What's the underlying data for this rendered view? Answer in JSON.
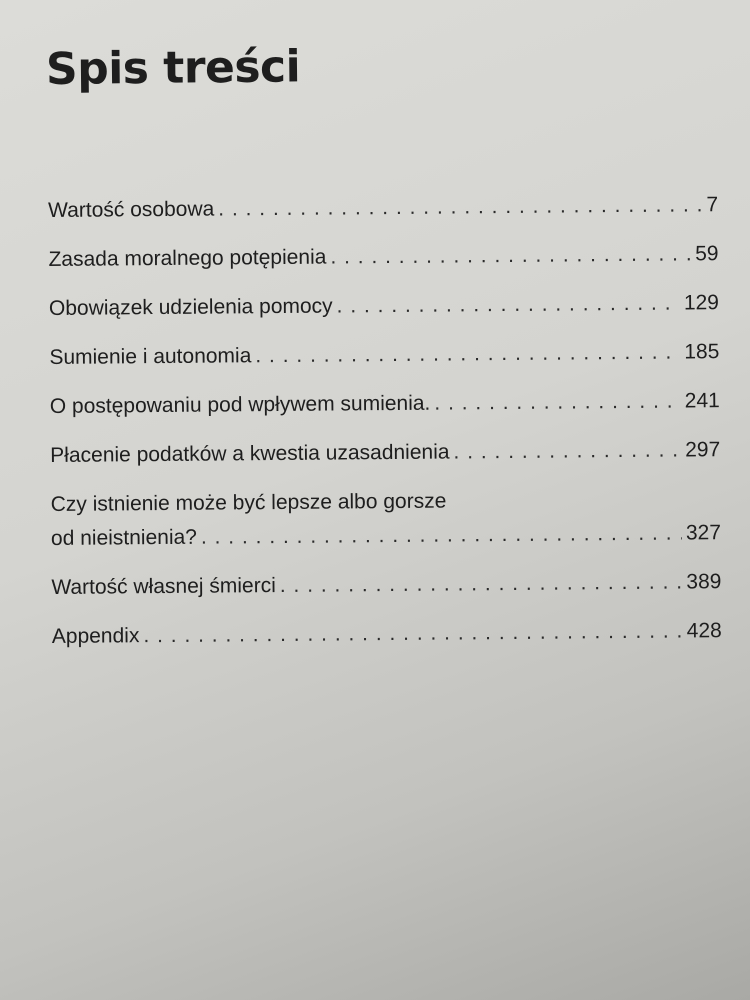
{
  "title": "Spis treści",
  "entries": [
    {
      "title": "Wartość osobowa",
      "page": "7"
    },
    {
      "title": "Zasada moralnego potępienia",
      "page": "59"
    },
    {
      "title": "Obowiązek udzielenia pomocy",
      "page": "129"
    },
    {
      "title": "Sumienie i autonomia",
      "page": "185"
    },
    {
      "title": "O postępowaniu pod wpływem sumienia.",
      "page": "241"
    },
    {
      "title": "Płacenie podatków a kwestia uzasadnienia",
      "page": "297"
    },
    {
      "title_line1": "Czy istnienie może być lepsze albo gorsze",
      "title_line2": "od nieistnienia?",
      "page": "327"
    },
    {
      "title": "Wartość własnej śmierci",
      "page": "389"
    },
    {
      "title": "Appendix",
      "page": "428"
    }
  ]
}
